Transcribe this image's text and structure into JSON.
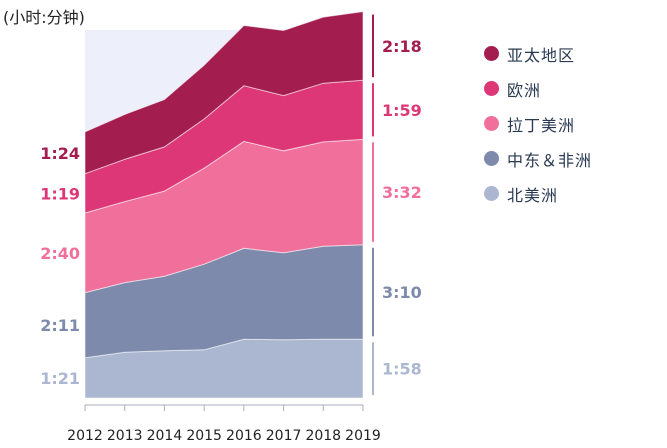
{
  "chart_data": {
    "type": "area",
    "stacked": true,
    "title": "(小时:分钟)",
    "x": [
      2012,
      2013,
      2014,
      2015,
      2016,
      2017,
      2018,
      2019
    ],
    "ylim": [
      0,
      740
    ],
    "series": [
      {
        "name": "北美洲",
        "color": "#abb7d0",
        "values": [
          81,
          92,
          95,
          97,
          118,
          117,
          118,
          118
        ],
        "start_label": "1:21",
        "end_label": "1:58"
      },
      {
        "name": "中东＆非洲",
        "color": "#7d8aab",
        "values": [
          131,
          140,
          150,
          172,
          183,
          175,
          187,
          190
        ],
        "start_label": "2:11",
        "end_label": "3:10"
      },
      {
        "name": "拉丁美洲",
        "color": "#f0709b",
        "values": [
          160,
          163,
          171,
          193,
          215,
          205,
          210,
          212
        ],
        "start_label": "2:40",
        "end_label": "3:32"
      },
      {
        "name": "欧洲",
        "color": "#de3777",
        "values": [
          79,
          85,
          89,
          99,
          112,
          111,
          118,
          119
        ],
        "start_label": "1:19",
        "end_label": "1:59"
      },
      {
        "name": "亚太地区",
        "color": "#a31d4f",
        "values": [
          84,
          90,
          95,
          108,
          121,
          131,
          133,
          138
        ],
        "start_label": "1:24",
        "end_label": "2:18"
      }
    ]
  }
}
